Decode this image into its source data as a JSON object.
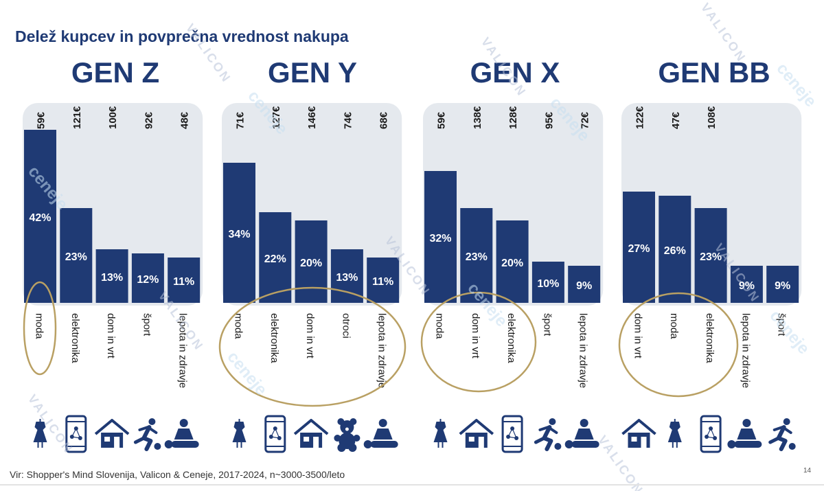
{
  "title": "Delež kupcev in povprečna vrednost nakupa",
  "footer": "Vir: Shopper's Mind Slovenija, Valicon & Ceneje, 2017-2024, n~3000-3500/leto",
  "page_number": "14",
  "watermarks": {
    "valicon": "VALICON",
    "ceneje": "ceneje"
  },
  "colors": {
    "bar": "#1f3a74",
    "highlight_ellipse": "#b9a063",
    "title": "#1f3a74",
    "background_photo_tint": "#dfe3ea"
  },
  "chart_data": [
    {
      "type": "bar",
      "title": "GEN Z",
      "categories": [
        "moda",
        "elektronika",
        "dom in vrt",
        "šport",
        "lepota in zdravje"
      ],
      "values": [
        42,
        23,
        13,
        12,
        11
      ],
      "value_labels": [
        "42%",
        "23%",
        "13%",
        "12%",
        "11%"
      ],
      "average_purchase": [
        "59€",
        "121€",
        "100€",
        "92€",
        "48€"
      ],
      "icons": [
        "dress-icon",
        "smartphone-icon",
        "house-icon",
        "runner-icon",
        "massage-icon"
      ],
      "highlighted": [
        "moda"
      ],
      "ylim": [
        0,
        45
      ]
    },
    {
      "type": "bar",
      "title": "GEN Y",
      "categories": [
        "moda",
        "elektronika",
        "dom in vrt",
        "otroci",
        "lepota in zdravje"
      ],
      "values": [
        34,
        22,
        20,
        13,
        11
      ],
      "value_labels": [
        "34%",
        "22%",
        "20%",
        "13%",
        "11%"
      ],
      "average_purchase": [
        "71€",
        "127€",
        "146€",
        "74€",
        "68€"
      ],
      "icons": [
        "dress-icon",
        "smartphone-icon",
        "house-icon",
        "teddy-bear-icon",
        "massage-icon"
      ],
      "highlighted": [
        "moda",
        "elektronika",
        "dom in vrt",
        "otroci",
        "lepota in zdravje"
      ],
      "ylim": [
        0,
        45
      ]
    },
    {
      "type": "bar",
      "title": "GEN X",
      "categories": [
        "moda",
        "dom in vrt",
        "elektronika",
        "šport",
        "lepota in zdravje"
      ],
      "values": [
        32,
        23,
        20,
        10,
        9
      ],
      "value_labels": [
        "32%",
        "23%",
        "20%",
        "10%",
        "9%"
      ],
      "average_purchase": [
        "59€",
        "138€",
        "128€",
        "95€",
        "72€"
      ],
      "icons": [
        "dress-icon",
        "house-icon",
        "smartphone-icon",
        "runner-icon",
        "massage-icon"
      ],
      "highlighted": [
        "moda",
        "dom in vrt",
        "elektronika"
      ],
      "ylim": [
        0,
        45
      ]
    },
    {
      "type": "bar",
      "title": "GEN BB",
      "categories": [
        "dom in vrt",
        "moda",
        "elektronika",
        "lepota in zdravje",
        "šport"
      ],
      "values": [
        27,
        26,
        23,
        9,
        9
      ],
      "value_labels": [
        "27%",
        "26%",
        "23%",
        "9%",
        "9%"
      ],
      "average_purchase": [
        "122€",
        "47€",
        "108€",
        "",
        ""
      ],
      "icons": [
        "house-icon",
        "dress-icon",
        "smartphone-icon",
        "massage-icon",
        "runner-icon"
      ],
      "highlighted": [
        "dom in vrt",
        "moda",
        "elektronika"
      ],
      "ylim": [
        0,
        45
      ]
    }
  ]
}
